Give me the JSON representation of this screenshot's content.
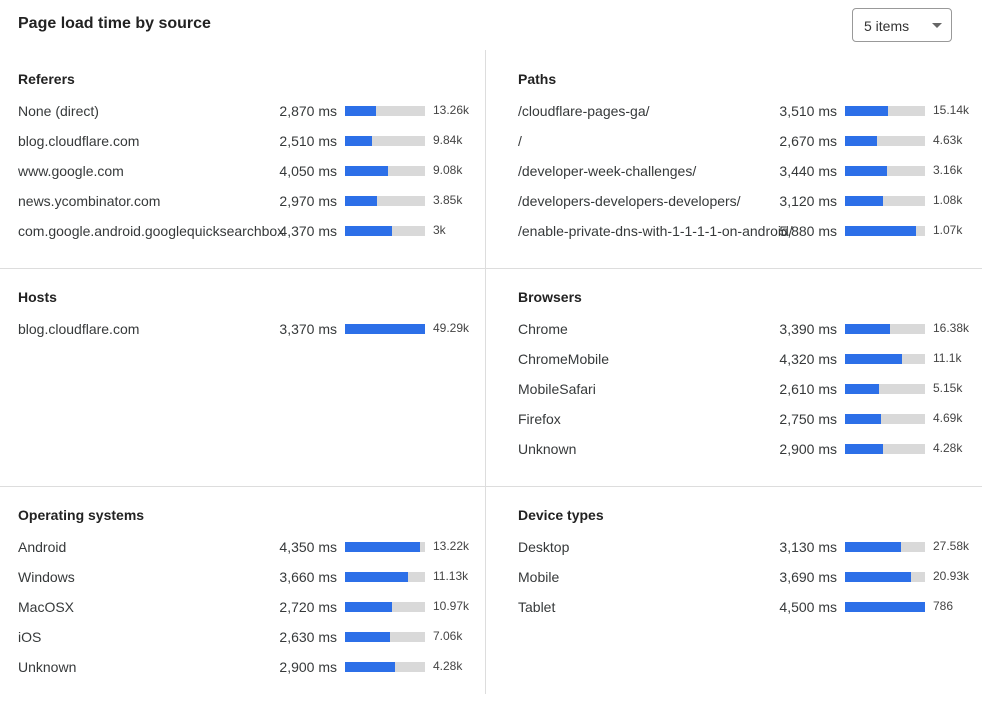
{
  "header": {
    "title": "Page load time by source",
    "select_value": "5 items"
  },
  "colors": {
    "bar_fill": "#2c6fe8",
    "bar_track": "#d9d9d9"
  },
  "sections": [
    {
      "title": "Referers",
      "rows": [
        {
          "label": "None (direct)",
          "ms": "2,870 ms",
          "count": "13.26k",
          "fill": 0.39
        },
        {
          "label": "blog.cloudflare.com",
          "ms": "2,510 ms",
          "count": "9.84k",
          "fill": 0.34
        },
        {
          "label": "www.google.com",
          "ms": "4,050 ms",
          "count": "9.08k",
          "fill": 0.54
        },
        {
          "label": "news.ycombinator.com",
          "ms": "2,970 ms",
          "count": "3.85k",
          "fill": 0.4
        },
        {
          "label": "com.google.android.googlequicksearchbox",
          "ms": "4,370 ms",
          "count": "3k",
          "fill": 0.59
        }
      ]
    },
    {
      "title": "Paths",
      "rows": [
        {
          "label": "/cloudflare-pages-ga/",
          "ms": "3,510 ms",
          "count": "15.14k",
          "fill": 0.54
        },
        {
          "label": "/",
          "ms": "2,670 ms",
          "count": "4.63k",
          "fill": 0.4
        },
        {
          "label": "/developer-week-challenges/",
          "ms": "3,440 ms",
          "count": "3.16k",
          "fill": 0.53
        },
        {
          "label": "/developers-developers-developers/",
          "ms": "3,120 ms",
          "count": "1.08k",
          "fill": 0.48
        },
        {
          "label": "/enable-private-dns-with-1-1-1-1-on-android/",
          "ms": "5,880 ms",
          "count": "1.07k",
          "fill": 0.89
        }
      ]
    },
    {
      "title": "Hosts",
      "rows": [
        {
          "label": "blog.cloudflare.com",
          "ms": "3,370 ms",
          "count": "49.29k",
          "fill": 1.0
        }
      ]
    },
    {
      "title": "Browsers",
      "rows": [
        {
          "label": "Chrome",
          "ms": "3,390 ms",
          "count": "16.38k",
          "fill": 0.56
        },
        {
          "label": "ChromeMobile",
          "ms": "4,320 ms",
          "count": "11.1k",
          "fill": 0.71
        },
        {
          "label": "MobileSafari",
          "ms": "2,610 ms",
          "count": "5.15k",
          "fill": 0.43
        },
        {
          "label": "Firefox",
          "ms": "2,750 ms",
          "count": "4.69k",
          "fill": 0.45
        },
        {
          "label": "Unknown",
          "ms": "2,900 ms",
          "count": "4.28k",
          "fill": 0.48
        }
      ]
    },
    {
      "title": "Operating systems",
      "rows": [
        {
          "label": "Android",
          "ms": "4,350 ms",
          "count": "13.22k",
          "fill": 0.94
        },
        {
          "label": "Windows",
          "ms": "3,660 ms",
          "count": "11.13k",
          "fill": 0.79
        },
        {
          "label": "MacOSX",
          "ms": "2,720 ms",
          "count": "10.97k",
          "fill": 0.59
        },
        {
          "label": "iOS",
          "ms": "2,630 ms",
          "count": "7.06k",
          "fill": 0.56
        },
        {
          "label": "Unknown",
          "ms": "2,900 ms",
          "count": "4.28k",
          "fill": 0.63
        }
      ]
    },
    {
      "title": "Device types",
      "rows": [
        {
          "label": "Desktop",
          "ms": "3,130 ms",
          "count": "27.58k",
          "fill": 0.7
        },
        {
          "label": "Mobile",
          "ms": "3,690 ms",
          "count": "20.93k",
          "fill": 0.83
        },
        {
          "label": "Tablet",
          "ms": "4,500 ms",
          "count": "786",
          "fill": 1.0
        }
      ]
    }
  ]
}
